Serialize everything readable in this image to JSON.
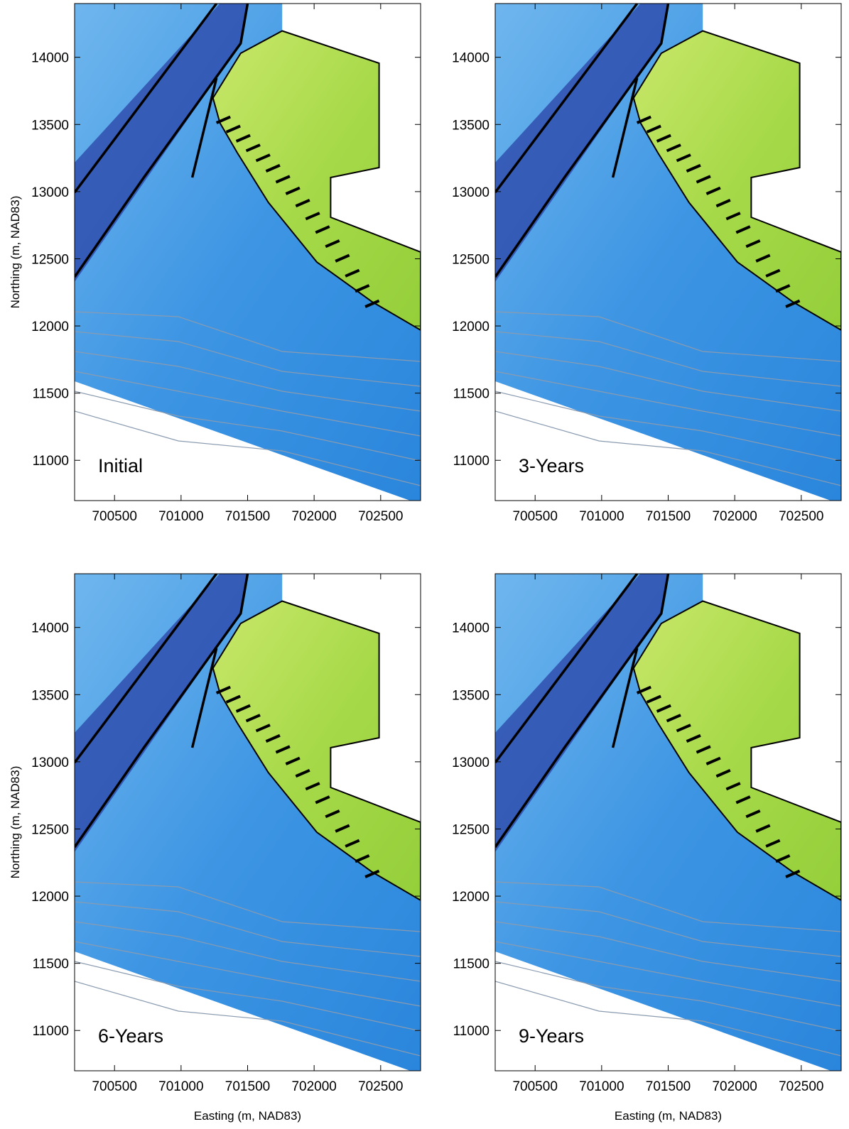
{
  "panels": [
    {
      "label": "Initial",
      "xlim": [
        700200,
        702800
      ],
      "ylim": [
        10700,
        14400
      ],
      "xticks": [
        700500,
        701000,
        701500,
        702000,
        702500
      ],
      "yticks": [
        11000,
        11500,
        12000,
        12500,
        13000,
        13500,
        14000
      ],
      "ylabel": "Northing (m, NAD83)"
    },
    {
      "label": "3-Years",
      "xlim": [
        700200,
        702800
      ],
      "ylim": [
        10700,
        14400
      ],
      "xticks": [
        700500,
        701000,
        701500,
        702000,
        702500
      ],
      "yticks": [
        11000,
        11500,
        12000,
        12500,
        13000,
        13500,
        14000
      ]
    },
    {
      "label": "6-Years",
      "xlim": [
        700200,
        702800
      ],
      "ylim": [
        10700,
        14400
      ],
      "xticks": [
        700500,
        701000,
        701500,
        702000,
        702500
      ],
      "yticks": [
        11000,
        11500,
        12000,
        12500,
        13000,
        13500,
        14000
      ],
      "ylabel": "Northing (m, NAD83)",
      "xlabel": "Easting (m, NAD83)"
    },
    {
      "label": "9-Years",
      "xlim": [
        700200,
        702800
      ],
      "ylim": [
        10700,
        14400
      ],
      "xticks": [
        700500,
        701000,
        701500,
        702000,
        702500
      ],
      "yticks": [
        11000,
        11500,
        12000,
        12500,
        13000,
        13500,
        14000
      ],
      "xlabel": "Easting (m, NAD83)"
    }
  ]
}
